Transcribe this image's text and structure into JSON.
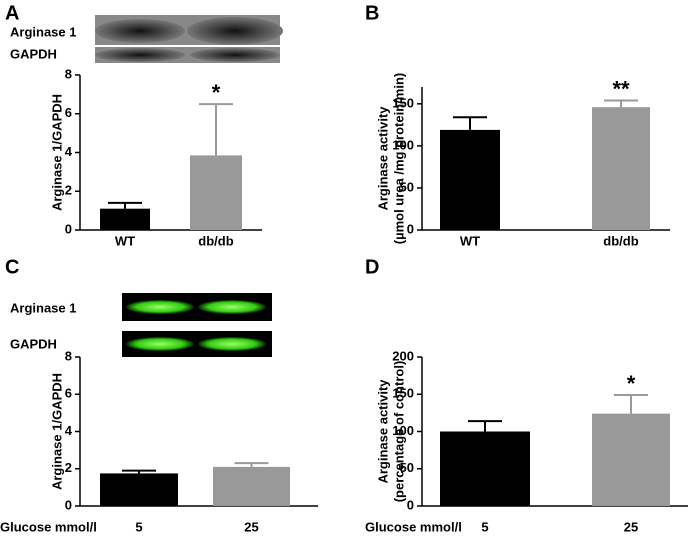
{
  "chart_data": [
    {
      "type": "bar",
      "label": "A",
      "blot_labels": [
        "Arginase 1",
        "GAPDH"
      ],
      "ylabel": [
        "Arginase 1/GAPDH"
      ],
      "categories": [
        "WT",
        "db/db"
      ],
      "values": [
        1.1,
        3.85
      ],
      "errors": [
        0.3,
        2.65
      ],
      "significance": [
        null,
        "*"
      ],
      "colors": [
        "#000000",
        "#999999"
      ],
      "ylim": [
        0,
        8
      ],
      "yticks": [
        0,
        2,
        4,
        6,
        8
      ]
    },
    {
      "type": "bar",
      "label": "B",
      "ylabel": [
        "Arginase activity",
        "(µmol urea /mg protein/min)"
      ],
      "categories": [
        "WT",
        "db/db"
      ],
      "values": [
        119,
        146
      ],
      "errors": [
        15,
        8
      ],
      "significance": [
        null,
        "**"
      ],
      "colors": [
        "#000000",
        "#999999"
      ],
      "ylim": [
        0,
        170
      ],
      "yticks": [
        0,
        50,
        100,
        150
      ]
    },
    {
      "type": "bar",
      "label": "C",
      "blot_labels": [
        "Arginase 1",
        "GAPDH"
      ],
      "ylabel": [
        "Arginase 1/GAPDH"
      ],
      "xlabel": "Glucose mmol/l",
      "categories": [
        "5",
        "25"
      ],
      "values": [
        1.75,
        2.1
      ],
      "errors": [
        0.15,
        0.2
      ],
      "significance": [
        null,
        null
      ],
      "colors": [
        "#000000",
        "#999999"
      ],
      "ylim": [
        0,
        8
      ],
      "yticks": [
        0,
        2,
        4,
        6,
        8
      ]
    },
    {
      "type": "bar",
      "label": "D",
      "ylabel": [
        "Arginase activity",
        "(percentage of control)"
      ],
      "xlabel": "Glucose mmol/l",
      "categories": [
        "5",
        "25"
      ],
      "values": [
        100,
        124
      ],
      "errors": [
        14,
        25
      ],
      "significance": [
        null,
        "*"
      ],
      "colors": [
        "#000000",
        "#999999"
      ],
      "ylim": [
        0,
        200
      ],
      "yticks": [
        0,
        50,
        100,
        150,
        200
      ]
    }
  ]
}
